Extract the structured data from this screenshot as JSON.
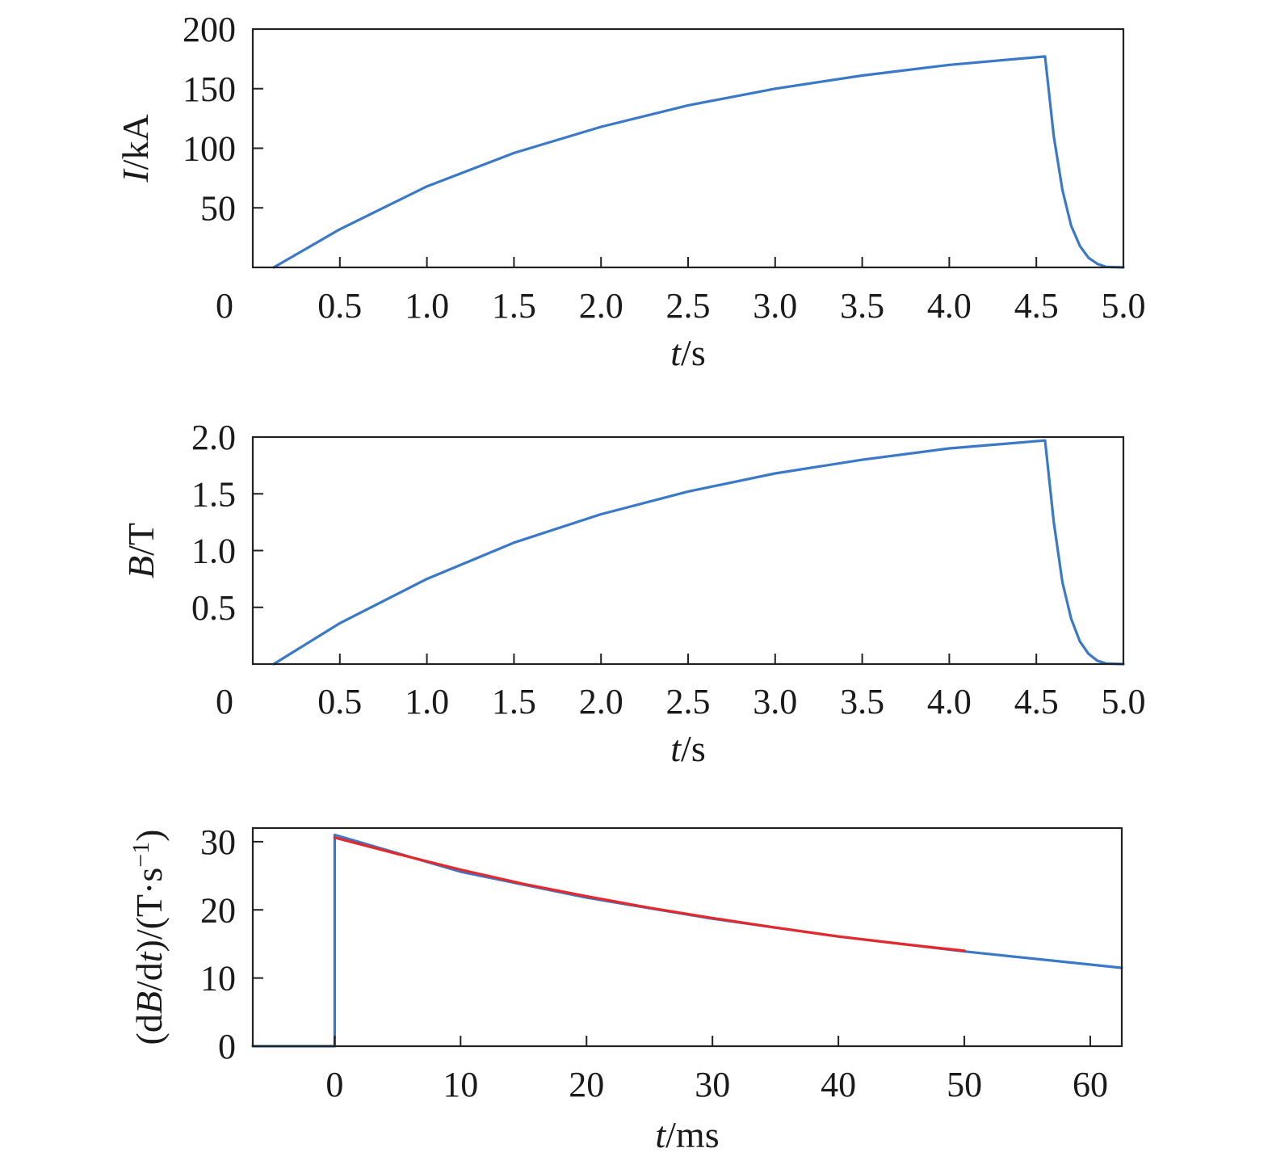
{
  "chart_data": [
    {
      "type": "line",
      "xlabel": {
        "var": "t",
        "unit": "/s"
      },
      "ylabel": {
        "var": "I",
        "unit": "/kA"
      },
      "xlim": [
        0,
        5.0
      ],
      "ylim": [
        0,
        200
      ],
      "xticks": [
        "0",
        "0.5",
        "1.0",
        "1.5",
        "2.0",
        "2.5",
        "3.0",
        "3.5",
        "4.0",
        "4.5",
        "5.0"
      ],
      "xtick_values": [
        0,
        0.5,
        1.0,
        1.5,
        2.0,
        2.5,
        3.0,
        3.5,
        4.0,
        4.5,
        5.0
      ],
      "yticks": [
        "50",
        "100",
        "150",
        "200"
      ],
      "ytick_values": [
        50,
        100,
        150,
        200
      ],
      "grid": false,
      "series": [
        {
          "color": "#3a78c8",
          "x": [
            0.12,
            0.5,
            1.0,
            1.5,
            2.0,
            2.5,
            3.0,
            3.5,
            4.0,
            4.55,
            4.6,
            4.65,
            4.7,
            4.75,
            4.8,
            4.85,
            4.9,
            5.0
          ],
          "y": [
            0,
            32,
            68,
            96,
            118,
            136,
            150,
            161,
            170,
            177,
            110,
            65,
            35,
            18,
            8,
            3,
            0.5,
            0
          ]
        }
      ]
    },
    {
      "type": "line",
      "xlabel": {
        "var": "t",
        "unit": "/s"
      },
      "ylabel": {
        "var": "B",
        "unit": "/T"
      },
      "xlim": [
        0,
        5.0
      ],
      "ylim": [
        0,
        2.0
      ],
      "xticks": [
        "0",
        "0.5",
        "1.0",
        "1.5",
        "2.0",
        "2.5",
        "3.0",
        "3.5",
        "4.0",
        "4.5",
        "5.0"
      ],
      "xtick_values": [
        0,
        0.5,
        1.0,
        1.5,
        2.0,
        2.5,
        3.0,
        3.5,
        4.0,
        4.5,
        5.0
      ],
      "yticks": [
        "0.5",
        "1.0",
        "1.5",
        "2.0"
      ],
      "ytick_values": [
        0.5,
        1.0,
        1.5,
        2.0
      ],
      "grid": false,
      "series": [
        {
          "color": "#3a78c8",
          "x": [
            0.12,
            0.5,
            1.0,
            1.5,
            2.0,
            2.5,
            3.0,
            3.5,
            4.0,
            4.55,
            4.6,
            4.65,
            4.7,
            4.75,
            4.8,
            4.85,
            4.9,
            5.0
          ],
          "y": [
            0,
            0.36,
            0.75,
            1.07,
            1.32,
            1.52,
            1.68,
            1.8,
            1.9,
            1.97,
            1.25,
            0.72,
            0.4,
            0.2,
            0.09,
            0.03,
            0.005,
            0
          ]
        }
      ]
    },
    {
      "type": "line",
      "xlabel": {
        "var": "t",
        "unit": "/ms"
      },
      "ylabel": {
        "pre": "(d",
        "var": "B",
        "mid": "/d",
        "var2": "t",
        "post": ")/(T·s",
        "sup": "−1",
        "end": ")"
      },
      "xlim": [
        -6.5,
        62.5
      ],
      "ylim": [
        0,
        32
      ],
      "xticks": [
        "0",
        "10",
        "20",
        "30",
        "40",
        "50",
        "60"
      ],
      "xtick_values": [
        0,
        10,
        20,
        30,
        40,
        50,
        60
      ],
      "yticks": [
        "0",
        "10",
        "20",
        "30"
      ],
      "ytick_values": [
        0,
        10,
        20,
        30
      ],
      "grid": false,
      "series": [
        {
          "color": "#3a78c8",
          "x": [
            -6.5,
            0,
            0,
            10,
            20,
            30,
            40,
            50,
            62.5
          ],
          "y": [
            0,
            0,
            31,
            25.6,
            21.8,
            18.7,
            16.1,
            13.9,
            11.5
          ]
        },
        {
          "color": "#e8272a",
          "x": [
            0,
            5,
            10,
            15,
            20,
            25,
            30,
            35,
            40,
            45,
            50
          ],
          "y": [
            30.6,
            28.2,
            25.9,
            23.8,
            22.0,
            20.3,
            18.8,
            17.4,
            16.1,
            15.0,
            14.0
          ]
        }
      ]
    }
  ]
}
